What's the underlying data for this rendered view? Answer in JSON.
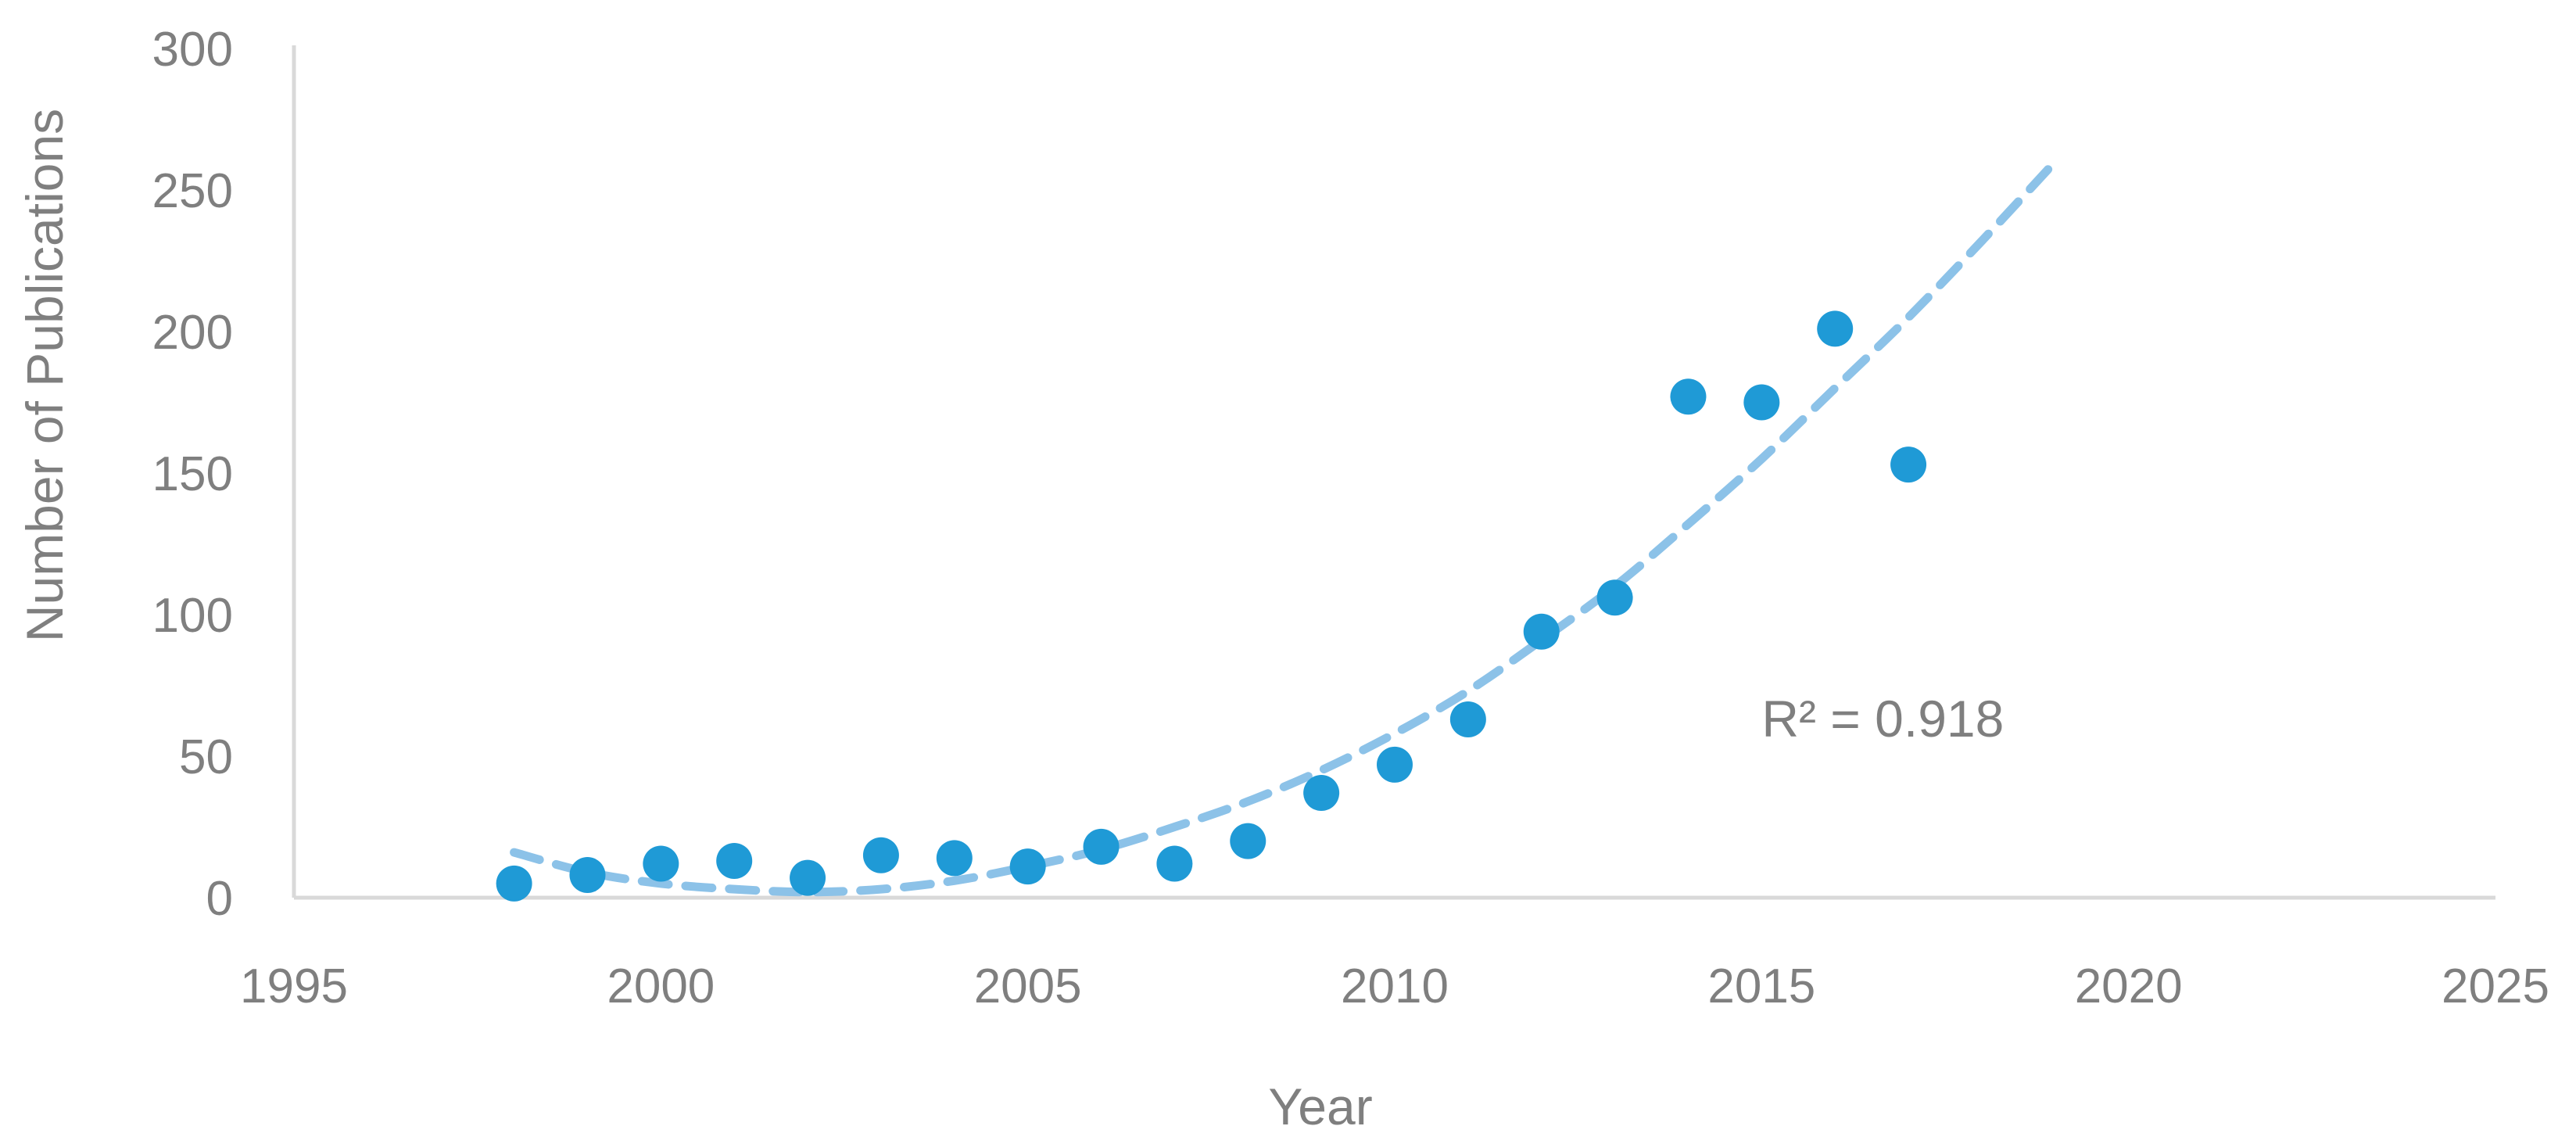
{
  "chart_data": {
    "type": "scatter",
    "title": "",
    "xlabel": "Year",
    "ylabel": "Number of Publications",
    "xlim": [
      1995,
      2025
    ],
    "ylim": [
      0,
      300
    ],
    "x_ticks": [
      1995,
      2000,
      2005,
      2010,
      2015,
      2020,
      2025
    ],
    "y_ticks": [
      0,
      50,
      100,
      150,
      200,
      250,
      300
    ],
    "grid": false,
    "legend": "none",
    "series": [
      {
        "marker_color": "#1f9ad6",
        "points": [
          {
            "x": 1998,
            "y": 5
          },
          {
            "x": 1999,
            "y": 8
          },
          {
            "x": 2000,
            "y": 12
          },
          {
            "x": 2001,
            "y": 13
          },
          {
            "x": 2002,
            "y": 7
          },
          {
            "x": 2003,
            "y": 15
          },
          {
            "x": 2004,
            "y": 14
          },
          {
            "x": 2005,
            "y": 11
          },
          {
            "x": 2006,
            "y": 18
          },
          {
            "x": 2007,
            "y": 12
          },
          {
            "x": 2008,
            "y": 20
          },
          {
            "x": 2009,
            "y": 37
          },
          {
            "x": 2010,
            "y": 47
          },
          {
            "x": 2011,
            "y": 63
          },
          {
            "x": 2012,
            "y": 94
          },
          {
            "x": 2013,
            "y": 106
          },
          {
            "x": 2014,
            "y": 177
          },
          {
            "x": 2015,
            "y": 175
          },
          {
            "x": 2016,
            "y": 201
          },
          {
            "x": 2017,
            "y": 153
          }
        ]
      }
    ],
    "trendline": {
      "type": "polynomial",
      "style": "dashed",
      "color": "#8cc2e8",
      "points": [
        {
          "x": 1998,
          "y": 16
        },
        {
          "x": 1999,
          "y": 9
        },
        {
          "x": 2000,
          "y": 5
        },
        {
          "x": 2001,
          "y": 3
        },
        {
          "x": 2002,
          "y": 2
        },
        {
          "x": 2003,
          "y": 3
        },
        {
          "x": 2004,
          "y": 6
        },
        {
          "x": 2005,
          "y": 11
        },
        {
          "x": 2006,
          "y": 17
        },
        {
          "x": 2007,
          "y": 25
        },
        {
          "x": 2008,
          "y": 34
        },
        {
          "x": 2009,
          "y": 45
        },
        {
          "x": 2010,
          "y": 58
        },
        {
          "x": 2011,
          "y": 73
        },
        {
          "x": 2012,
          "y": 91
        },
        {
          "x": 2013,
          "y": 110
        },
        {
          "x": 2014,
          "y": 132
        },
        {
          "x": 2015,
          "y": 155
        },
        {
          "x": 2016,
          "y": 180
        },
        {
          "x": 2017,
          "y": 205
        },
        {
          "x": 2018,
          "y": 232
        },
        {
          "x": 2019,
          "y": 260
        }
      ]
    },
    "annotations": [
      {
        "text": "R² = 0.918",
        "x": 2015,
        "y": 63
      }
    ],
    "colors": {
      "axis": "#d9d9d9",
      "text": "#7f7f7f"
    }
  }
}
